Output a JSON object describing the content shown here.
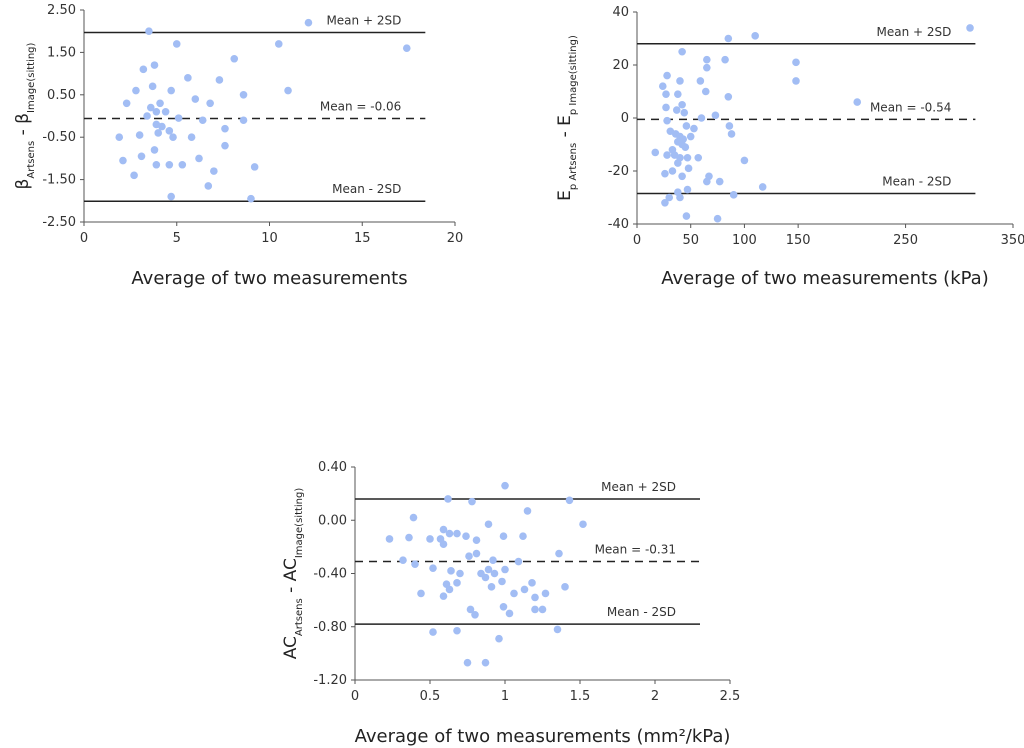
{
  "chart_data": [
    {
      "type": "scatter",
      "id": "beta",
      "ylabel": {
        "a": "β",
        "a_sub": "Artsens",
        "sep": " - ",
        "b": "β",
        "b_sub": "Image(sitting)"
      },
      "xlabel": "Average of two measurements",
      "xlim": [
        0,
        20
      ],
      "ylim": [
        -2.5,
        2.5
      ],
      "xticks": [
        0,
        5,
        10,
        15,
        20
      ],
      "xtick_labels": [
        "0",
        "5",
        "10",
        "15",
        "20"
      ],
      "yticks": [
        2.5,
        1.5,
        0.5,
        -0.5,
        -1.5,
        -2.5
      ],
      "ytick_labels": [
        "2.50",
        "1.50",
        "0.50",
        "-0.50",
        "-1.50",
        "-2.50"
      ],
      "line_xmax": 18.4,
      "lines": [
        {
          "y": 1.97,
          "label": "Mean + 2SD",
          "style": "solid"
        },
        {
          "y": -0.06,
          "label": "Mean = -0.06",
          "style": "dashed"
        },
        {
          "y": -2.01,
          "label": "Mean - 2SD",
          "style": "solid"
        }
      ],
      "points": [
        [
          3.5,
          2.0
        ],
        [
          5.0,
          1.7
        ],
        [
          12.1,
          2.2
        ],
        [
          10.5,
          1.7
        ],
        [
          17.4,
          1.6
        ],
        [
          3.2,
          1.1
        ],
        [
          5.6,
          0.9
        ],
        [
          3.8,
          1.2
        ],
        [
          4.7,
          0.6
        ],
        [
          2.8,
          0.6
        ],
        [
          7.3,
          0.85
        ],
        [
          8.1,
          1.35
        ],
        [
          11.0,
          0.6
        ],
        [
          3.7,
          0.7
        ],
        [
          6.0,
          0.4
        ],
        [
          2.3,
          0.3
        ],
        [
          3.6,
          0.2
        ],
        [
          4.1,
          0.3
        ],
        [
          6.8,
          0.3
        ],
        [
          8.6,
          0.5
        ],
        [
          3.9,
          0.1
        ],
        [
          4.4,
          0.1
        ],
        [
          3.4,
          0.0
        ],
        [
          5.1,
          -0.05
        ],
        [
          6.4,
          -0.1
        ],
        [
          8.6,
          -0.1
        ],
        [
          3.9,
          -0.2
        ],
        [
          4.0,
          -0.4
        ],
        [
          4.6,
          -0.35
        ],
        [
          4.2,
          -0.25
        ],
        [
          7.6,
          -0.3
        ],
        [
          3.0,
          -0.45
        ],
        [
          1.9,
          -0.5
        ],
        [
          4.8,
          -0.5
        ],
        [
          5.8,
          -0.5
        ],
        [
          7.6,
          -0.7
        ],
        [
          3.8,
          -0.8
        ],
        [
          2.1,
          -1.05
        ],
        [
          3.1,
          -0.95
        ],
        [
          6.2,
          -1.0
        ],
        [
          3.9,
          -1.15
        ],
        [
          4.6,
          -1.15
        ],
        [
          5.3,
          -1.15
        ],
        [
          9.2,
          -1.2
        ],
        [
          2.7,
          -1.4
        ],
        [
          7.0,
          -1.3
        ],
        [
          6.7,
          -1.65
        ],
        [
          4.7,
          -1.9
        ],
        [
          9.0,
          -1.95
        ]
      ]
    },
    {
      "type": "scatter",
      "id": "ep",
      "ylabel": {
        "a": "E",
        "a_sub": "p Artsens",
        "sep": " - ",
        "b": "E",
        "b_sub": "p Image(sitting)"
      },
      "xlabel": "Average of two measurements (kPa)",
      "xlim": [
        0,
        350
      ],
      "ylim": [
        -40,
        40
      ],
      "xticks": [
        0,
        50,
        100,
        150,
        250,
        350
      ],
      "xtick_labels": [
        "0",
        "50",
        "100",
        "150",
        "250",
        "350"
      ],
      "yticks": [
        40,
        20,
        0,
        -20,
        -40
      ],
      "ytick_labels": [
        "40",
        "20",
        "0",
        "-20",
        "-40"
      ],
      "line_xmax": 315,
      "lines": [
        {
          "y": 28.0,
          "label": "Mean + 2SD",
          "style": "solid"
        },
        {
          "y": -0.54,
          "label": "Mean = -0.54",
          "style": "dashed"
        },
        {
          "y": -28.5,
          "label": "Mean - 2SD",
          "style": "solid"
        }
      ],
      "points": [
        [
          310,
          34
        ],
        [
          110,
          31
        ],
        [
          85,
          30
        ],
        [
          148,
          21
        ],
        [
          42,
          25
        ],
        [
          65,
          22
        ],
        [
          65,
          19
        ],
        [
          82,
          22
        ],
        [
          28,
          16
        ],
        [
          24,
          12
        ],
        [
          40,
          14
        ],
        [
          59,
          14
        ],
        [
          27,
          9
        ],
        [
          38,
          9
        ],
        [
          148,
          14
        ],
        [
          64,
          10
        ],
        [
          85,
          8
        ],
        [
          205,
          6
        ],
        [
          27,
          4
        ],
        [
          42,
          5
        ],
        [
          37,
          3
        ],
        [
          44,
          2
        ],
        [
          60,
          0
        ],
        [
          73,
          1
        ],
        [
          28,
          -1
        ],
        [
          46,
          -3
        ],
        [
          53,
          -4
        ],
        [
          86,
          -3
        ],
        [
          88,
          -6
        ],
        [
          31,
          -5
        ],
        [
          36,
          -6
        ],
        [
          40,
          -7
        ],
        [
          43,
          -8
        ],
        [
          50,
          -7
        ],
        [
          38,
          -9
        ],
        [
          42,
          -10
        ],
        [
          33,
          -12
        ],
        [
          45,
          -11
        ],
        [
          28,
          -14
        ],
        [
          35,
          -14
        ],
        [
          40,
          -15
        ],
        [
          47,
          -15
        ],
        [
          57,
          -15
        ],
        [
          17,
          -13
        ],
        [
          100,
          -16
        ],
        [
          38,
          -17
        ],
        [
          48,
          -19
        ],
        [
          33,
          -20
        ],
        [
          26,
          -21
        ],
        [
          42,
          -22
        ],
        [
          67,
          -22
        ],
        [
          65,
          -24
        ],
        [
          77,
          -24
        ],
        [
          117,
          -26
        ],
        [
          47,
          -27
        ],
        [
          38,
          -28
        ],
        [
          90,
          -29
        ],
        [
          30,
          -30
        ],
        [
          40,
          -30
        ],
        [
          26,
          -32
        ],
        [
          46,
          -37
        ],
        [
          75,
          -38
        ]
      ]
    },
    {
      "type": "scatter",
      "id": "ac",
      "ylabel": {
        "a": "AC",
        "a_sub": "Artsens",
        "sep": " - ",
        "b": "AC",
        "b_sub": "Image(sitting)"
      },
      "xlabel": "Average of two measurements (mm²/kPa)",
      "xlim": [
        0,
        2.5
      ],
      "ylim": [
        -1.2,
        0.4
      ],
      "xticks": [
        0,
        0.5,
        1,
        1.5,
        2,
        2.5
      ],
      "xtick_labels": [
        "0",
        "0.5",
        "1",
        "1.5",
        "2",
        "2.5"
      ],
      "yticks": [
        0.4,
        0.0,
        -0.4,
        -0.8,
        -1.2
      ],
      "ytick_labels": [
        "0.40",
        "0.00",
        "-0.40",
        "-0.80",
        "-1.20"
      ],
      "line_xmax": 2.3,
      "lines": [
        {
          "y": 0.16,
          "label": "Mean + 2SD",
          "style": "solid"
        },
        {
          "y": -0.31,
          "label": "Mean = -0.31",
          "style": "dashed"
        },
        {
          "y": -0.78,
          "label": "Mean - 2SD",
          "style": "solid"
        }
      ],
      "points": [
        [
          1.0,
          0.26
        ],
        [
          0.62,
          0.16
        ],
        [
          0.78,
          0.14
        ],
        [
          1.43,
          0.15
        ],
        [
          1.15,
          0.07
        ],
        [
          1.52,
          -0.03
        ],
        [
          0.39,
          0.02
        ],
        [
          0.59,
          -0.07
        ],
        [
          0.89,
          -0.03
        ],
        [
          0.63,
          -0.1
        ],
        [
          0.68,
          -0.1
        ],
        [
          0.74,
          -0.12
        ],
        [
          0.99,
          -0.12
        ],
        [
          1.12,
          -0.12
        ],
        [
          0.23,
          -0.14
        ],
        [
          0.36,
          -0.13
        ],
        [
          0.5,
          -0.14
        ],
        [
          0.57,
          -0.14
        ],
        [
          0.59,
          -0.18
        ],
        [
          0.81,
          -0.15
        ],
        [
          1.36,
          -0.25
        ],
        [
          0.32,
          -0.3
        ],
        [
          0.4,
          -0.33
        ],
        [
          0.76,
          -0.27
        ],
        [
          0.81,
          -0.25
        ],
        [
          0.92,
          -0.3
        ],
        [
          1.09,
          -0.31
        ],
        [
          0.52,
          -0.36
        ],
        [
          0.64,
          -0.38
        ],
        [
          0.7,
          -0.4
        ],
        [
          0.89,
          -0.37
        ],
        [
          0.93,
          -0.4
        ],
        [
          1.0,
          -0.37
        ],
        [
          0.68,
          -0.47
        ],
        [
          0.84,
          -0.4
        ],
        [
          0.87,
          -0.43
        ],
        [
          0.98,
          -0.46
        ],
        [
          0.61,
          -0.48
        ],
        [
          0.91,
          -0.5
        ],
        [
          1.18,
          -0.47
        ],
        [
          1.4,
          -0.5
        ],
        [
          0.44,
          -0.55
        ],
        [
          0.63,
          -0.52
        ],
        [
          1.13,
          -0.52
        ],
        [
          1.06,
          -0.55
        ],
        [
          1.27,
          -0.55
        ],
        [
          0.59,
          -0.57
        ],
        [
          1.2,
          -0.58
        ],
        [
          0.99,
          -0.65
        ],
        [
          0.77,
          -0.67
        ],
        [
          0.8,
          -0.71
        ],
        [
          1.2,
          -0.67
        ],
        [
          1.25,
          -0.67
        ],
        [
          1.03,
          -0.7
        ],
        [
          0.52,
          -0.84
        ],
        [
          0.68,
          -0.83
        ],
        [
          1.35,
          -0.82
        ],
        [
          0.96,
          -0.89
        ],
        [
          0.75,
          -1.07
        ],
        [
          0.87,
          -1.07
        ]
      ]
    }
  ],
  "colors": {
    "point": "#a2bdf4",
    "line": "#222222",
    "axis": "#555555"
  }
}
